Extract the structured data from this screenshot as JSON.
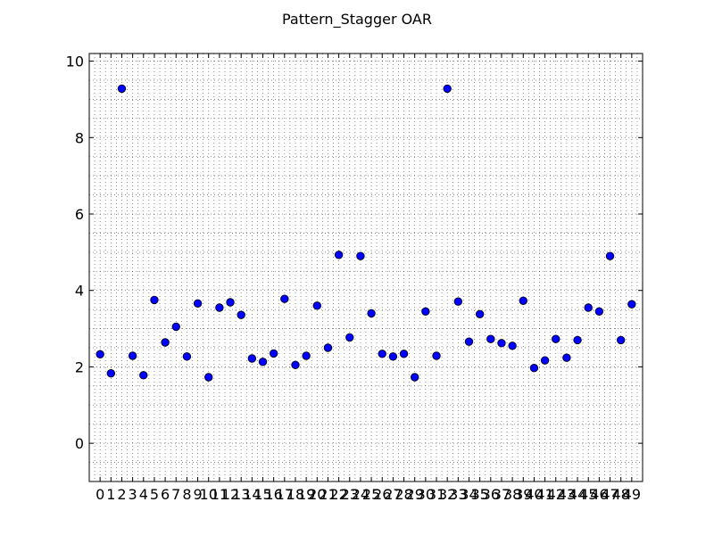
{
  "chart_data": {
    "type": "scatter",
    "title": "Pattern_Stagger OAR",
    "xlabel": "",
    "ylabel": "",
    "xlim": [
      -1,
      50
    ],
    "ylim": [
      -1,
      10.2
    ],
    "grid": true,
    "x_ticks": [
      0,
      1,
      2,
      3,
      4,
      5,
      6,
      7,
      8,
      9,
      10,
      11,
      12,
      13,
      14,
      15,
      16,
      17,
      18,
      19,
      20,
      21,
      22,
      23,
      24,
      25,
      26,
      27,
      28,
      29,
      30,
      31,
      32,
      33,
      34,
      35,
      36,
      37,
      38,
      39,
      40,
      41,
      42,
      43,
      44,
      45,
      46,
      47,
      48,
      49
    ],
    "y_ticks": [
      0,
      2,
      4,
      6,
      8,
      10
    ],
    "marker_color": "#0000ff",
    "x": [
      0,
      1,
      2,
      3,
      4,
      5,
      6,
      7,
      8,
      9,
      10,
      11,
      12,
      13,
      14,
      15,
      16,
      17,
      18,
      19,
      20,
      21,
      22,
      23,
      24,
      25,
      26,
      27,
      28,
      29,
      30,
      31,
      32,
      33,
      34,
      35,
      36,
      37,
      38,
      39,
      40,
      41,
      42,
      43,
      44,
      45,
      46,
      47,
      48,
      49
    ],
    "y": [
      2.33,
      1.83,
      9.28,
      2.29,
      1.78,
      3.75,
      2.64,
      3.05,
      2.27,
      3.66,
      1.73,
      3.55,
      3.69,
      3.36,
      2.22,
      2.13,
      2.35,
      3.78,
      2.05,
      2.29,
      3.6,
      2.5,
      4.93,
      2.77,
      4.9,
      3.4,
      2.34,
      2.27,
      2.34,
      1.73,
      3.45,
      2.29,
      9.28,
      3.71,
      2.66,
      3.38,
      2.73,
      2.62,
      2.55,
      3.73,
      1.97,
      2.17,
      2.73,
      2.24,
      2.7,
      3.55,
      3.45,
      4.9,
      2.7,
      3.64
    ]
  }
}
